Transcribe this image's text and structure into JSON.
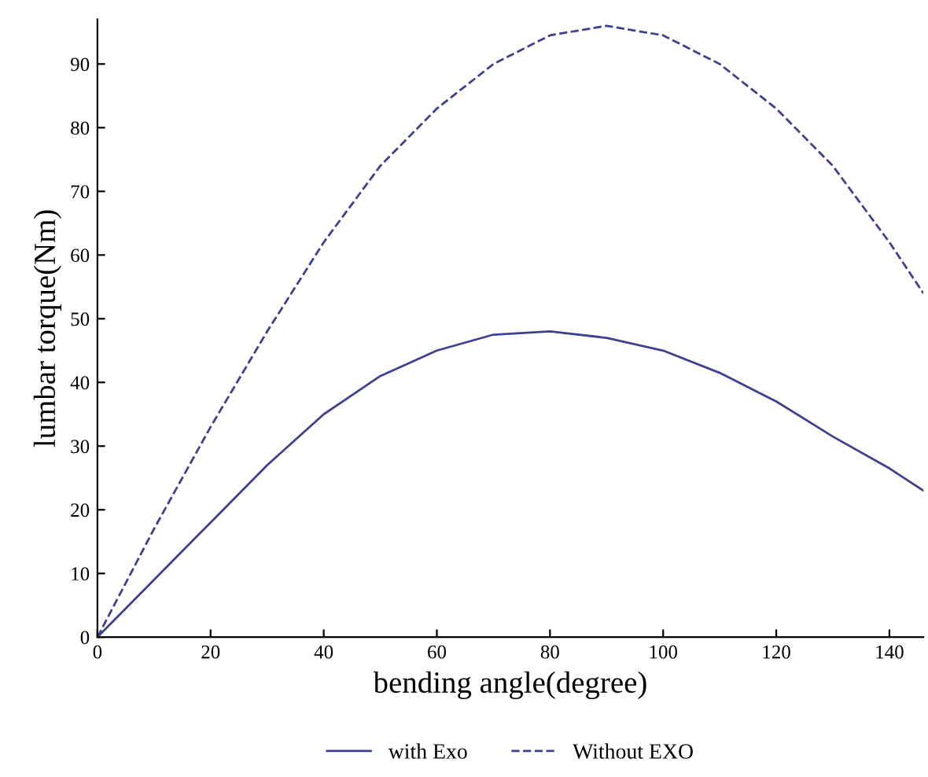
{
  "chart_data": {
    "type": "line",
    "xlabel": "bending angle(degree)",
    "ylabel": "lumbar torque(Nm)",
    "x": [
      0,
      10,
      20,
      30,
      40,
      50,
      60,
      70,
      80,
      90,
      100,
      110,
      120,
      130,
      140,
      146
    ],
    "series": [
      {
        "name": "with Exo",
        "color": "#404090",
        "line_style": "solid",
        "values": [
          0,
          9,
          18,
          27,
          35,
          41,
          45,
          47.5,
          48,
          47,
          45,
          41.5,
          37,
          31.5,
          26.5,
          23
        ]
      },
      {
        "name": "Without EXO",
        "color": "#404090",
        "line_style": "dashed",
        "values": [
          0,
          17,
          33,
          48,
          62,
          74,
          83,
          90,
          94.5,
          96,
          94.5,
          90,
          83,
          74,
          62,
          54
        ]
      }
    ],
    "xlim": [
      0,
      146
    ],
    "ylim": [
      0,
      97
    ],
    "xticks": [
      0,
      20,
      40,
      60,
      80,
      100,
      120,
      140
    ],
    "yticks": [
      0,
      10,
      20,
      30,
      40,
      50,
      60,
      70,
      80,
      90
    ],
    "grid": false,
    "legend": "bottom",
    "marker": "none"
  }
}
